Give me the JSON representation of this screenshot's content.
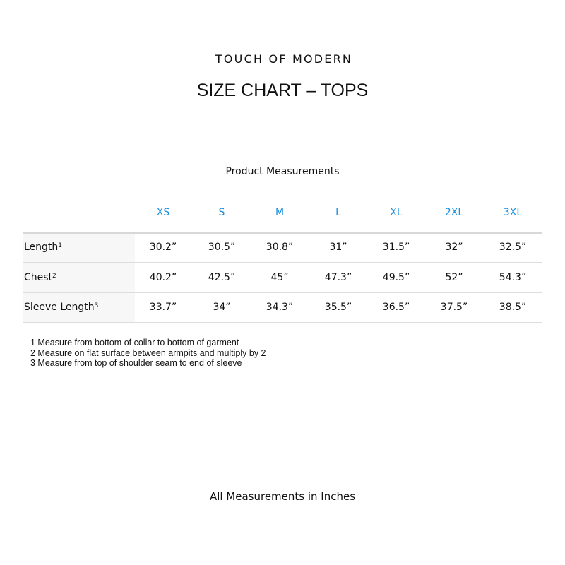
{
  "brand": "TOUCH OF MODERN",
  "title": "SIZE CHART – TOPS",
  "subtitle": "Product Measurements",
  "accent_color": "#1a8fdc",
  "sizes": [
    "XS",
    "S",
    "M",
    "L",
    "XL",
    "2XL",
    "3XL"
  ],
  "rows": [
    {
      "label": "Length",
      "note": "1",
      "values": [
        "30.2”",
        "30.5”",
        "30.8”",
        "31”",
        "31.5”",
        "32”",
        "32.5”"
      ]
    },
    {
      "label": "Chest",
      "note": "2",
      "values": [
        "40.2”",
        "42.5”",
        "45”",
        "47.3”",
        "49.5”",
        "52”",
        "54.3”"
      ]
    },
    {
      "label": "Sleeve Length",
      "note": "3",
      "values": [
        "33.7”",
        "34”",
        "34.3”",
        "35.5”",
        "36.5”",
        "37.5”",
        "38.5”"
      ]
    }
  ],
  "notes": [
    "1 Measure from bottom of collar to bottom of garment",
    "2 Measure on flat surface between armpits and multiply by 2",
    "3 Measure from top of shoulder seam to end of sleeve"
  ],
  "footer": "All Measurements in Inches"
}
